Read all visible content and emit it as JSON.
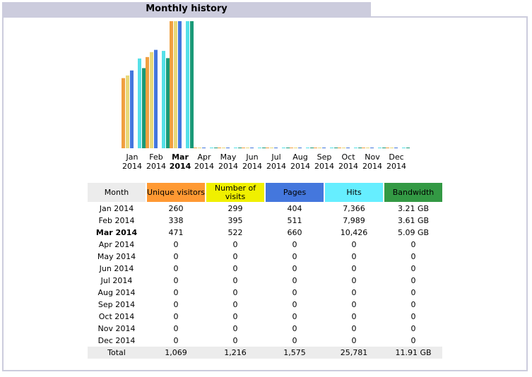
{
  "title": "Monthly history",
  "chart_data": {
    "type": "bar",
    "categories": [
      [
        "Jan",
        "2014"
      ],
      [
        "Feb",
        "2014"
      ],
      [
        "Mar",
        "2014"
      ],
      [
        "Apr",
        "2014"
      ],
      [
        "May",
        "2014"
      ],
      [
        "Jun",
        "2014"
      ],
      [
        "Jul",
        "2014"
      ],
      [
        "Aug",
        "2014"
      ],
      [
        "Sep",
        "2014"
      ],
      [
        "Oct",
        "2014"
      ],
      [
        "Nov",
        "2014"
      ],
      [
        "Dec",
        "2014"
      ]
    ],
    "highlight_index": 2,
    "series": [
      {
        "name": "Unique visitors",
        "color": "#f0a040",
        "values": [
          260,
          338,
          471,
          0,
          0,
          0,
          0,
          0,
          0,
          0,
          0,
          0
        ]
      },
      {
        "name": "Number of visits",
        "color": "#e8d878",
        "values": [
          299,
          395,
          522,
          0,
          0,
          0,
          0,
          0,
          0,
          0,
          0,
          0
        ]
      },
      {
        "name": "Pages",
        "color": "#4477dd",
        "values": [
          404,
          511,
          660,
          0,
          0,
          0,
          0,
          0,
          0,
          0,
          0,
          0
        ]
      },
      {
        "name": "Hits",
        "color": "#55e0e8",
        "values": [
          7366,
          7989,
          10426,
          0,
          0,
          0,
          0,
          0,
          0,
          0,
          0,
          0
        ]
      },
      {
        "name": "Bandwidth",
        "color": "#1a9a78",
        "values": [
          3.21,
          3.61,
          5.09,
          0,
          0,
          0,
          0,
          0,
          0,
          0,
          0,
          0
        ]
      }
    ]
  },
  "table": {
    "headers": [
      {
        "label": "Month",
        "color": "#ececec"
      },
      {
        "label": "Unique visitors",
        "color": "#ff9933"
      },
      {
        "label": "Number of visits",
        "color": "#f0f000"
      },
      {
        "label": "Pages",
        "color": "#4477dd"
      },
      {
        "label": "Hits",
        "color": "#66eeff"
      },
      {
        "label": "Bandwidth",
        "color": "#339944"
      }
    ],
    "rows": [
      [
        "Jan 2014",
        "260",
        "299",
        "404",
        "7,366",
        "3.21 GB"
      ],
      [
        "Feb 2014",
        "338",
        "395",
        "511",
        "7,989",
        "3.61 GB"
      ],
      [
        "Mar 2014",
        "471",
        "522",
        "660",
        "10,426",
        "5.09 GB"
      ],
      [
        "Apr 2014",
        "0",
        "0",
        "0",
        "0",
        "0"
      ],
      [
        "May 2014",
        "0",
        "0",
        "0",
        "0",
        "0"
      ],
      [
        "Jun 2014",
        "0",
        "0",
        "0",
        "0",
        "0"
      ],
      [
        "Jul 2014",
        "0",
        "0",
        "0",
        "0",
        "0"
      ],
      [
        "Aug 2014",
        "0",
        "0",
        "0",
        "0",
        "0"
      ],
      [
        "Sep 2014",
        "0",
        "0",
        "0",
        "0",
        "0"
      ],
      [
        "Oct 2014",
        "0",
        "0",
        "0",
        "0",
        "0"
      ],
      [
        "Nov 2014",
        "0",
        "0",
        "0",
        "0",
        "0"
      ],
      [
        "Dec 2014",
        "0",
        "0",
        "0",
        "0",
        "0"
      ]
    ],
    "total": [
      "Total",
      "1,069",
      "1,216",
      "1,575",
      "25,781",
      "11.91 GB"
    ]
  }
}
